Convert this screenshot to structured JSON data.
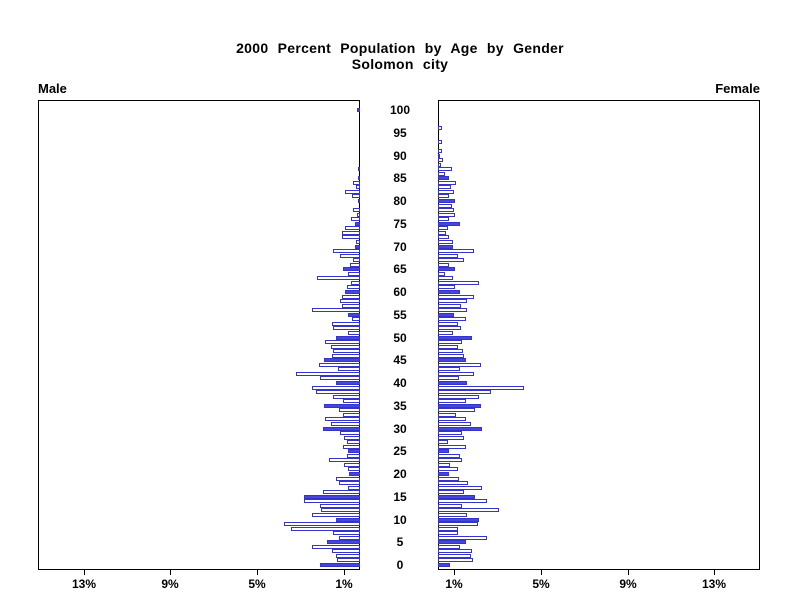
{
  "title": {
    "line1": "2000 Percent Population by Age by Gender",
    "line2": "Solomon city"
  },
  "axis": {
    "male_label": "Male",
    "female_label": "Female",
    "x_ticks": [
      {
        "label": "1%",
        "value": 1
      },
      {
        "label": "5%",
        "value": 5
      },
      {
        "label": "9%",
        "value": 9
      },
      {
        "label": "13%",
        "value": 13
      }
    ],
    "age_ticks": [
      0,
      5,
      10,
      15,
      20,
      25,
      30,
      35,
      40,
      45,
      50,
      55,
      60,
      65,
      70,
      75,
      80,
      85,
      90,
      95,
      100
    ]
  },
  "colors": {
    "bar_fill": "#4646dd",
    "bar_outline": "#3434cc",
    "axis": "#000000",
    "background": "#ffffff"
  },
  "chart_data": {
    "type": "bar",
    "variant": "population-pyramid",
    "title": "2000 Percent Population by Age by Gender",
    "subtitle": "Solomon city",
    "units": "percent of total population",
    "age_min": 0,
    "age_max": 100,
    "age_axis_tick_labels": [
      0,
      5,
      10,
      15,
      20,
      25,
      30,
      35,
      40,
      45,
      50,
      55,
      60,
      65,
      70,
      75,
      80,
      85,
      90,
      95,
      100
    ],
    "x_axis_tick_percents": [
      1,
      5,
      9,
      13
    ],
    "xlim_percent_each_side": [
      0,
      14.8
    ],
    "legend": "none",
    "grid": "off",
    "style_note": "single-year-of-age bars; ages divisible by 5 are solid filled blue, other ages are white with blue outline; male bars extend left, female bars extend right",
    "series": [
      {
        "name": "Male",
        "side": "left",
        "values_by_age": [
          1.85,
          1.05,
          1.1,
          1.3,
          2.2,
          1.5,
          0.95,
          1.25,
          3.2,
          3.5,
          1.1,
          2.2,
          1.8,
          1.85,
          2.6,
          2.6,
          1.7,
          0.55,
          0.95,
          1.1,
          0.5,
          0.55,
          0.75,
          1.45,
          0.6,
          0.55,
          0.8,
          0.6,
          0.75,
          0.9,
          1.7,
          1.35,
          1.6,
          0.8,
          0.95,
          1.65,
          0.8,
          1.25,
          2.05,
          2.2,
          1.1,
          1.85,
          2.95,
          1.0,
          1.9,
          1.65,
          1.3,
          1.25,
          1.35,
          1.6,
          1.1,
          0.55,
          1.25,
          1.3,
          0.35,
          0.55,
          2.2,
          0.85,
          0.9,
          0.85,
          0.7,
          0.6,
          0.4,
          2.0,
          0.55,
          0.8,
          0.45,
          0.3,
          0.9,
          1.25,
          0.25,
          0.2,
          0.85,
          0.85,
          0.7,
          0.25,
          0.4,
          0.15,
          0.3,
          0,
          0.1,
          0.35,
          0.7,
          0.2,
          0.3,
          0.1,
          0,
          0.1,
          0,
          0,
          0,
          0,
          0,
          0,
          0,
          0,
          0,
          0,
          0,
          0,
          0.15
        ]
      },
      {
        "name": "Female",
        "side": "right",
        "values_by_age": [
          0.55,
          1.6,
          1.5,
          1.55,
          1.0,
          1.3,
          2.25,
          0.9,
          0.9,
          1.85,
          1.9,
          1.35,
          2.8,
          1.1,
          2.25,
          1.7,
          1.2,
          2.05,
          1.4,
          0.95,
          0.5,
          0.9,
          0.55,
          1.1,
          1.0,
          0.5,
          1.3,
          0.45,
          1.2,
          1.1,
          2.05,
          1.5,
          1.3,
          0.85,
          1.7,
          2.0,
          1.3,
          1.9,
          2.45,
          3.95,
          1.35,
          0.95,
          1.65,
          1.0,
          2.0,
          1.3,
          1.2,
          1.15,
          0.9,
          1.1,
          1.55,
          0.7,
          1.05,
          0.9,
          1.3,
          0.75,
          1.35,
          1.05,
          1.35,
          1.65,
          1.0,
          0.8,
          1.9,
          0.7,
          0.3,
          0.8,
          0.5,
          1.2,
          0.9,
          1.65,
          0.7,
          0.7,
          0.5,
          0.35,
          0.45,
          1.0,
          0.5,
          0.8,
          0.75,
          0.65,
          0.8,
          0.5,
          0.75,
          0.6,
          0.85,
          0.5,
          0.3,
          0.65,
          0.15,
          0.25,
          0.1,
          0.2,
          0,
          0.2,
          0,
          0,
          0.2,
          0,
          0,
          0,
          0
        ]
      }
    ]
  }
}
